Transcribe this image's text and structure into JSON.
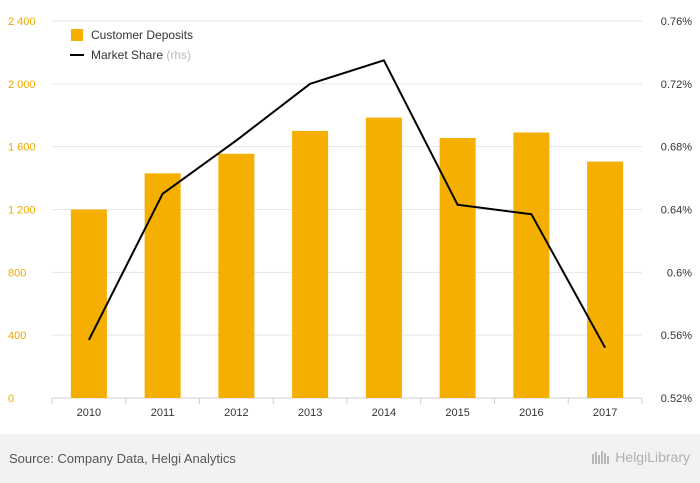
{
  "chart_data": {
    "type": "bar",
    "categories": [
      "2010",
      "2011",
      "2012",
      "2013",
      "2014",
      "2015",
      "2016",
      "2017"
    ],
    "series": [
      {
        "name": "Customer Deposits",
        "type": "bar",
        "axis": "left",
        "color": "#f5af00",
        "values": [
          1200,
          1430,
          1555,
          1700,
          1785,
          1655,
          1690,
          1505
        ]
      },
      {
        "name": "Market Share",
        "type": "line",
        "axis": "right",
        "color": "#000000",
        "values": [
          0.557,
          0.65,
          0.684,
          0.72,
          0.735,
          0.643,
          0.637,
          0.552
        ]
      }
    ],
    "left_axis": {
      "min": 0,
      "max": 2400,
      "ticks": [
        0,
        400,
        800,
        1200,
        1600,
        2000,
        2400
      ],
      "tick_labels": [
        "0",
        "400",
        "800",
        "1 200",
        "1 600",
        "2 000",
        "2 400"
      ]
    },
    "right_axis": {
      "min": 0.52,
      "max": 0.76,
      "ticks": [
        0.52,
        0.56,
        0.6,
        0.64,
        0.68,
        0.72,
        0.76
      ],
      "tick_labels": [
        "0.52%",
        "0.56%",
        "0.6%",
        "0.64%",
        "0.68%",
        "0.72%",
        "0.76%"
      ]
    },
    "legend": {
      "position": "top-left",
      "items": [
        {
          "label": "Customer Deposits",
          "note": "",
          "marker": "square"
        },
        {
          "label": "Market Share",
          "note": "(rhs)",
          "marker": "line"
        }
      ]
    },
    "grid": true,
    "colors": {
      "bar": "#f5af00",
      "line": "#000000",
      "grid": "#e6e6e6",
      "left_ticks": "#f0a800"
    }
  },
  "footer": {
    "source": "Source: Company Data, Helgi Analytics",
    "brand": "HelgiLibrary"
  }
}
